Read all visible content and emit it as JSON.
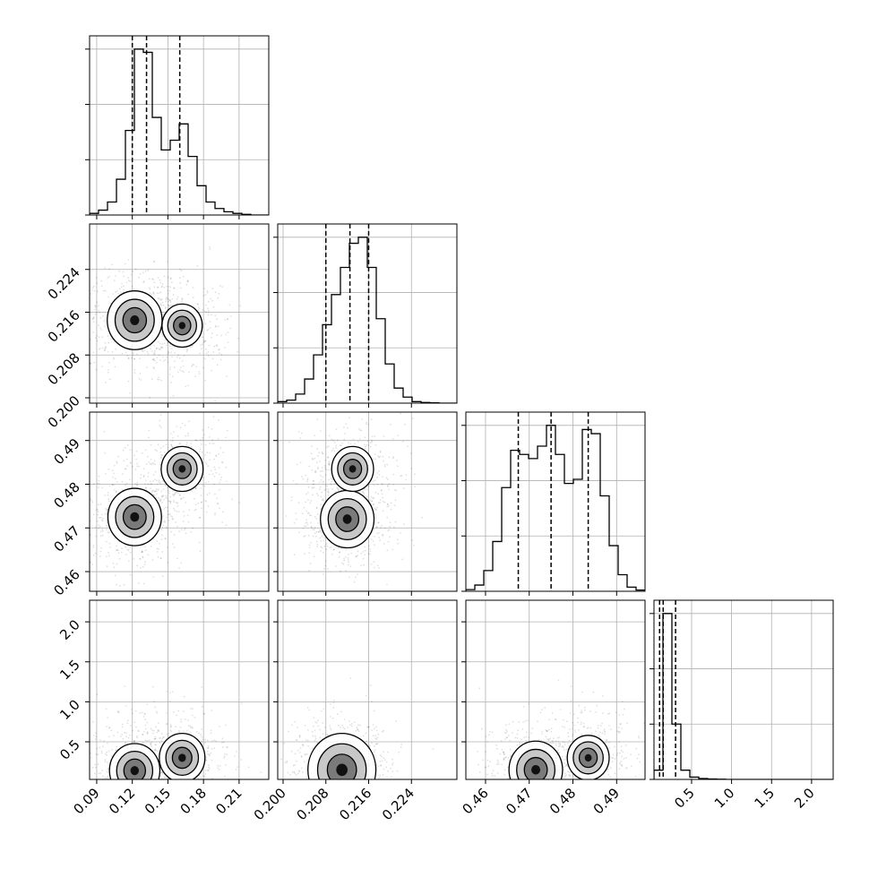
{
  "chart_data": {
    "type": "corner",
    "grid": true,
    "parameters": [
      {
        "range": [
          0.084,
          0.235
        ],
        "ticks": [
          "0.09",
          "0.12",
          "0.15",
          "0.18",
          "0.21"
        ],
        "tick_values": [
          0.09,
          0.12,
          0.15,
          0.18,
          0.21
        ],
        "quantiles": [
          0.12,
          0.132,
          0.16
        ]
      },
      {
        "range": [
          0.199,
          0.2325
        ],
        "ticks": [
          "0.200",
          "0.208",
          "0.216",
          "0.224"
        ],
        "tick_values": [
          0.2,
          0.208,
          0.216,
          0.224
        ],
        "quantiles": [
          0.208,
          0.2125,
          0.216
        ]
      },
      {
        "range": [
          0.4555,
          0.4965
        ],
        "ticks": [
          "0.46",
          "0.47",
          "0.48",
          "0.49"
        ],
        "tick_values": [
          0.46,
          0.47,
          0.48,
          0.49
        ],
        "quantiles": [
          0.4675,
          0.475,
          0.4835
        ]
      },
      {
        "range": [
          0.03,
          2.27
        ],
        "ticks": [
          "0.5",
          "1.0",
          "1.5",
          "2.0"
        ],
        "tick_values": [
          0.5,
          1.0,
          1.5,
          2.0
        ],
        "quantiles": [
          0.1,
          0.145,
          0.3
        ]
      }
    ],
    "histograms": [
      {
        "bin_range": [
          0.084,
          0.235
        ],
        "counts": [
          0.5,
          1.5,
          4,
          11,
          26,
          51,
          50,
          30,
          20,
          23,
          28,
          18,
          9,
          4,
          2,
          1,
          0.5,
          0.2,
          0,
          0
        ]
      },
      {
        "bin_range": [
          0.199,
          0.2325
        ],
        "counts": [
          0.5,
          1,
          3,
          8,
          16,
          26,
          36,
          45,
          53,
          55,
          45,
          28,
          13,
          5,
          2,
          0.5,
          0.2,
          0.1,
          0,
          0
        ]
      },
      {
        "bin_range": [
          0.4555,
          0.4965
        ],
        "counts": [
          0.4,
          1.5,
          5,
          12,
          25,
          34,
          33,
          32,
          35,
          40,
          33,
          26,
          27,
          39,
          38,
          23,
          11,
          4,
          1,
          0.3
        ]
      },
      {
        "bin_range": [
          0.03,
          2.27
        ],
        "counts": [
          2,
          36,
          12,
          2,
          0.5,
          0.2,
          0.1,
          0.05,
          0,
          0,
          0,
          0,
          0,
          0,
          0,
          0,
          0,
          0,
          0,
          0
        ]
      }
    ],
    "density_modes": [
      {
        "x": 0,
        "y": 1,
        "modes": [
          {
            "x": 0.122,
            "y": 0.2145,
            "w": 0.65
          },
          {
            "x": 0.162,
            "y": 0.2135,
            "w": 0.35
          }
        ]
      },
      {
        "x": 0,
        "y": 2,
        "modes": [
          {
            "x": 0.122,
            "y": 0.4725,
            "w": 0.62
          },
          {
            "x": 0.162,
            "y": 0.4835,
            "w": 0.38
          }
        ]
      },
      {
        "x": 0,
        "y": 3,
        "modes": [
          {
            "x": 0.122,
            "y": 0.14,
            "w": 0.55
          },
          {
            "x": 0.162,
            "y": 0.3,
            "w": 0.45
          }
        ]
      },
      {
        "x": 1,
        "y": 2,
        "modes": [
          {
            "x": 0.212,
            "y": 0.472,
            "w": 0.62
          },
          {
            "x": 0.213,
            "y": 0.4835,
            "w": 0.38
          }
        ]
      },
      {
        "x": 1,
        "y": 3,
        "modes": [
          {
            "x": 0.211,
            "y": 0.15,
            "w": 1.0
          }
        ]
      },
      {
        "x": 2,
        "y": 3,
        "modes": [
          {
            "x": 0.4715,
            "y": 0.15,
            "w": 0.62
          },
          {
            "x": 0.4835,
            "y": 0.3,
            "w": 0.38
          }
        ]
      }
    ]
  }
}
